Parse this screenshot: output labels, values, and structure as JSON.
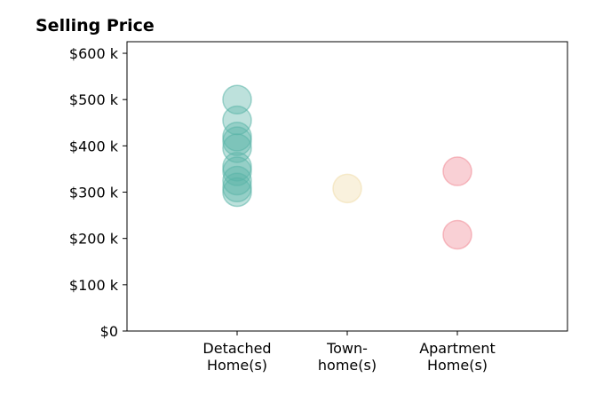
{
  "chart_data": {
    "type": "scatter",
    "title": "Selling Price",
    "xlabel": "",
    "ylabel": "",
    "ylim": [
      0,
      625000
    ],
    "xlim": [
      -1,
      3
    ],
    "grid": false,
    "legend": "none",
    "categories": [
      {
        "lines": [
          "Detached",
          "Home(s)"
        ],
        "color": "#5ab5a8"
      },
      {
        "lines": [
          "Town-",
          "home(s)"
        ],
        "color": "#f1dca9"
      },
      {
        "lines": [
          "Apartment",
          "Home(s)"
        ],
        "color": "#f08a96"
      }
    ],
    "y_ticks": [
      {
        "value": 0,
        "label": "$0"
      },
      {
        "value": 100000,
        "label": "$100 k"
      },
      {
        "value": 200000,
        "label": "$200 k"
      },
      {
        "value": 300000,
        "label": "$300 k"
      },
      {
        "value": 400000,
        "label": "$400 k"
      },
      {
        "value": 500000,
        "label": "$500 k"
      },
      {
        "value": 600000,
        "label": "$600 k"
      }
    ],
    "series": [
      {
        "category": 0,
        "values": [
          500000,
          455000,
          420000,
          410000,
          395000,
          355000,
          345000,
          325000,
          310000,
          300000
        ]
      },
      {
        "category": 1,
        "values": [
          308000
        ]
      },
      {
        "category": 2,
        "values": [
          345000,
          208000
        ]
      }
    ]
  }
}
